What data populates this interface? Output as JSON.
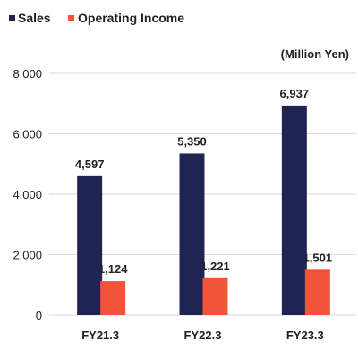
{
  "chart_data": {
    "type": "bar",
    "unit_label": "(Million Yen)",
    "categories": [
      "FY21.3",
      "FY22.3",
      "FY23.3"
    ],
    "series": [
      {
        "name": "Sales",
        "values": [
          4597,
          5350,
          6937
        ],
        "labels": [
          "4,597",
          "5,350",
          "6,937"
        ],
        "color": "#1f2452"
      },
      {
        "name": "Operating Income",
        "values": [
          1124,
          1221,
          1501
        ],
        "labels": [
          "1,124",
          "1,221",
          "1,501"
        ],
        "color": "#f05537"
      }
    ],
    "ylim": [
      0,
      8000
    ],
    "yticks": [
      0,
      2000,
      4000,
      6000,
      8000
    ],
    "ytick_labels": [
      "0",
      "2,000",
      "4,000",
      "6,000",
      "8,000"
    ],
    "grid": true,
    "gridline_color": "#d9d9d9",
    "legend_position": "top-left"
  }
}
